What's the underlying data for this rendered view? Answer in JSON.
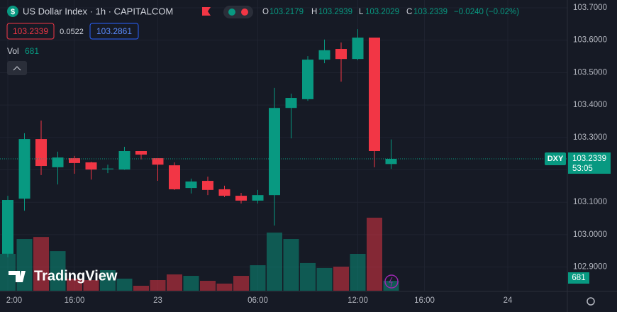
{
  "chart_data": {
    "type": "candlestick",
    "title": "US Dollar Index · 1h · CAPITALCOM",
    "legend_ohlc": {
      "o_label": "O",
      "o": "103.2179",
      "h_label": "H",
      "h": "103.2939",
      "l_label": "L",
      "l": "103.2029",
      "c_label": "C",
      "c": "103.2339",
      "change": "−0.0240 (−0.02%)"
    },
    "sell_price": "103.2339",
    "spread": "0.0522",
    "buy_price": "103.2861",
    "volume_label": "Vol",
    "volume_value": "681",
    "symbol_tag": "DXY",
    "last_price_tag": "103.2339",
    "countdown": "53:05",
    "volume_tag": "681",
    "logo": "TradingView",
    "categories": [
      "2:00",
      null,
      null,
      null,
      "16:00",
      null,
      null,
      null,
      null,
      "23",
      null,
      null,
      null,
      null,
      null,
      "06:00",
      null,
      null,
      null,
      null,
      null,
      "12:00",
      null,
      null,
      null,
      "16:00",
      null,
      null,
      null,
      null,
      "24"
    ],
    "open": [
      102.941,
      103.111,
      103.295,
      103.208,
      103.236,
      103.223,
      103.202,
      103.201,
      103.258,
      103.236,
      103.214,
      103.144,
      103.166,
      103.14,
      103.12,
      103.105,
      103.122,
      103.391,
      103.418,
      103.54,
      103.573,
      103.542,
      103.608,
      103.2179,
      null,
      null,
      null,
      null,
      null,
      null,
      null
    ],
    "high": [
      103.12,
      103.313,
      103.352,
      103.256,
      103.243,
      103.225,
      103.216,
      103.271,
      103.258,
      103.236,
      103.223,
      103.173,
      103.179,
      103.151,
      103.129,
      103.138,
      103.453,
      103.435,
      103.551,
      103.602,
      103.593,
      103.634,
      103.608,
      103.2939,
      null,
      null,
      null,
      null,
      null,
      null,
      null
    ],
    "low": [
      102.93,
      103.074,
      103.184,
      103.155,
      103.188,
      103.17,
      103.19,
      103.2,
      103.232,
      103.166,
      103.138,
      103.127,
      103.122,
      103.116,
      103.096,
      103.096,
      103.028,
      103.297,
      103.413,
      103.529,
      103.472,
      103.538,
      103.208,
      103.2029,
      null,
      null,
      null,
      null,
      null,
      null,
      null
    ],
    "close": [
      103.107,
      103.295,
      103.212,
      103.238,
      103.221,
      103.201,
      103.204,
      103.258,
      103.247,
      103.216,
      103.14,
      103.164,
      103.138,
      103.12,
      103.105,
      103.122,
      103.391,
      103.422,
      103.54,
      103.569,
      103.542,
      103.608,
      103.258,
      103.2339,
      null,
      null,
      null,
      null,
      null,
      null,
      null
    ],
    "volume": [
      2530,
      3550,
      3690,
      2720,
      830,
      730,
      1410,
      830,
      340,
      730,
      1120,
      1020,
      680,
      490,
      1020,
      1750,
      3990,
      3550,
      1900,
      1560,
      1650,
      2530,
      5010,
      681,
      null,
      null,
      null,
      null,
      null,
      null,
      null
    ],
    "up_color": "#089981",
    "down_color": "#f23645",
    "ylim": [
      102.827,
      103.724
    ],
    "yticks": [
      {
        "value": 102.9,
        "label": "102.9000"
      },
      {
        "value": 103.0,
        "label": "103.0000"
      },
      {
        "value": 103.1,
        "label": "103.1000"
      },
      {
        "value": 103.2,
        "label": "103.2000"
      },
      {
        "value": 103.3,
        "label": "103.3000"
      },
      {
        "value": 103.4,
        "label": "103.4000"
      },
      {
        "value": 103.5,
        "label": "103.5000"
      },
      {
        "value": 103.6,
        "label": "103.6000"
      },
      {
        "value": 103.7,
        "label": "103.7000"
      }
    ],
    "last_price": 103.2339
  }
}
